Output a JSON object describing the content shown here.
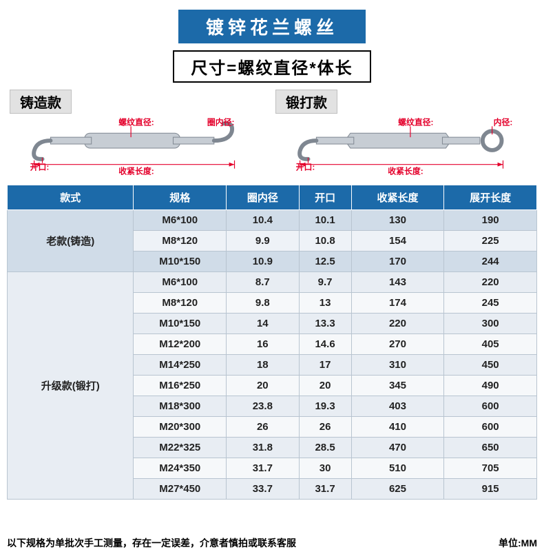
{
  "title": "镀锌花兰螺丝",
  "formula": "尺寸=螺纹直径*体长",
  "diagrams": {
    "left": {
      "label": "铸造款",
      "annot_thread": "螺纹直径:",
      "annot_inner": "圈内径:",
      "annot_open": "开口:",
      "annot_len": "收紧长度:"
    },
    "right": {
      "label": "锻打款",
      "annot_thread": "螺纹直径:",
      "annot_inner": "内径:",
      "annot_open": "开口:",
      "annot_len": "收紧长度:"
    }
  },
  "table": {
    "columns": [
      "款式",
      "规格",
      "圈内径",
      "开口",
      "收紧长度",
      "展开长度"
    ],
    "groups": [
      {
        "style": "老款(铸造)",
        "rows": [
          [
            "M6*100",
            "10.4",
            "10.1",
            "130",
            "190"
          ],
          [
            "M8*120",
            "9.9",
            "10.8",
            "154",
            "225"
          ],
          [
            "M10*150",
            "10.9",
            "12.5",
            "170",
            "244"
          ]
        ]
      },
      {
        "style": "升级款(锻打)",
        "rows": [
          [
            "M6*100",
            "8.7",
            "9.7",
            "143",
            "220"
          ],
          [
            "M8*120",
            "9.8",
            "13",
            "174",
            "245"
          ],
          [
            "M10*150",
            "14",
            "13.3",
            "220",
            "300"
          ],
          [
            "M12*200",
            "16",
            "14.6",
            "270",
            "405"
          ],
          [
            "M14*250",
            "18",
            "17",
            "310",
            "450"
          ],
          [
            "M16*250",
            "20",
            "20",
            "345",
            "490"
          ],
          [
            "M18*300",
            "23.8",
            "19.3",
            "403",
            "600"
          ],
          [
            "M20*300",
            "26",
            "26",
            "410",
            "600"
          ],
          [
            "M22*325",
            "31.8",
            "28.5",
            "470",
            "650"
          ],
          [
            "M24*350",
            "31.7",
            "30",
            "510",
            "705"
          ],
          [
            "M27*450",
            "33.7",
            "31.7",
            "625",
            "915"
          ]
        ]
      }
    ]
  },
  "footer_note": "以下规格为单批次手工测量，存在一定误差，介意者慎拍或联系客服",
  "unit_label": "单位:MM",
  "colors": {
    "primary": "#1c6aa9",
    "accent": "#e4002b",
    "row_alt1": "#d0dce8",
    "row_alt2": "#eef2f7",
    "border": "#b8c4d0"
  }
}
